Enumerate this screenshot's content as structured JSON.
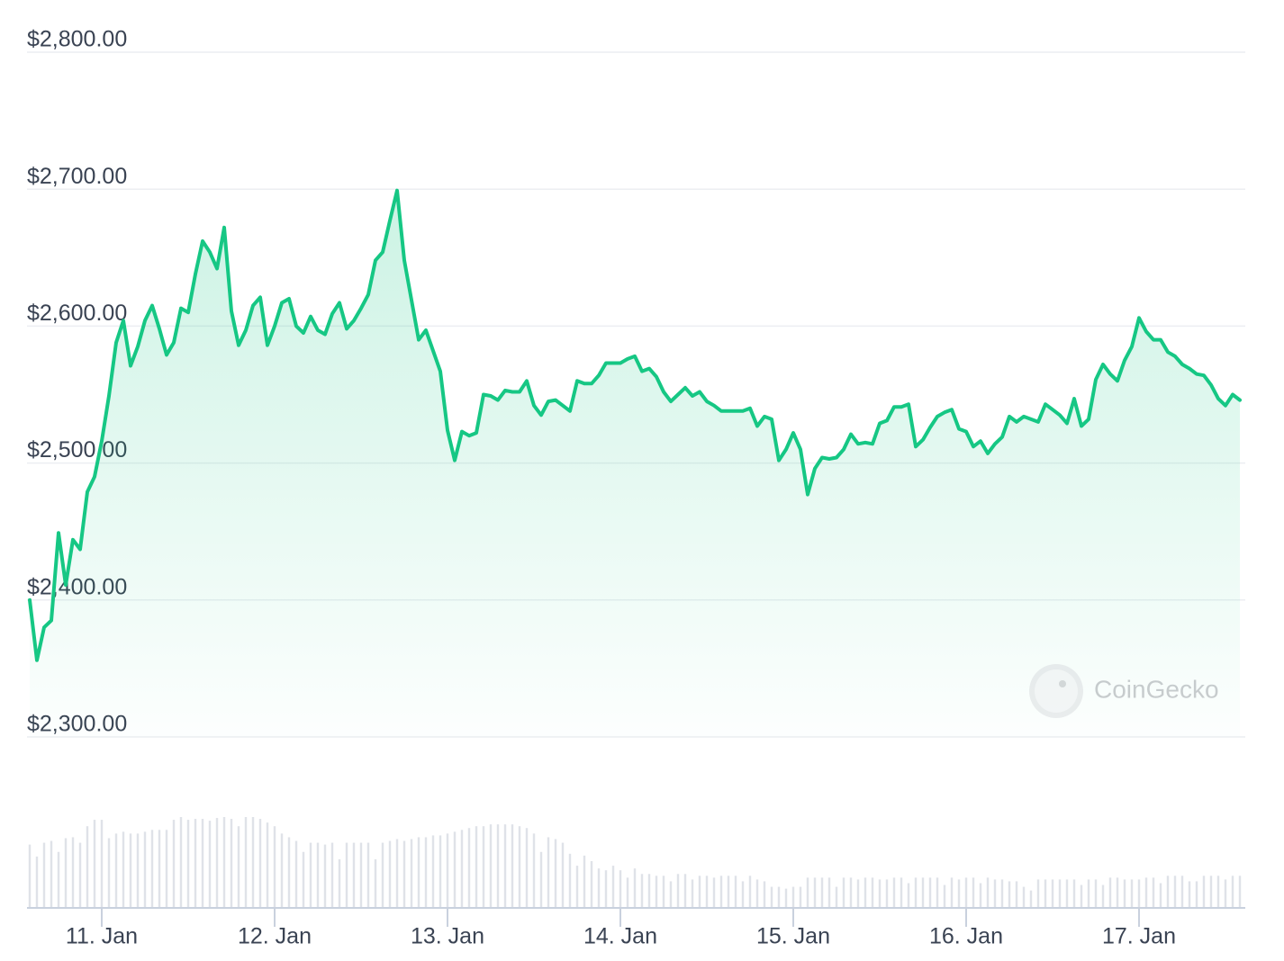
{
  "chart_data": {
    "type": "area",
    "watermark": "CoinGecko",
    "color": "#16c784",
    "volume_color": "#dfe2e8",
    "grid": true,
    "ylim": [
      2300,
      2800
    ],
    "yticks": [
      {
        "value": 2300,
        "label": "$2,300.00"
      },
      {
        "value": 2400,
        "label": "$2,400.00"
      },
      {
        "value": 2500,
        "label": "$2,500.00"
      },
      {
        "value": 2600,
        "label": "$2,600.00"
      },
      {
        "value": 2700,
        "label": "$2,700.00"
      },
      {
        "value": 2800,
        "label": "$2,800.00"
      }
    ],
    "xlim": [
      -10,
      158.75
    ],
    "xticks": [
      {
        "value": 0,
        "label": "11. Jan"
      },
      {
        "value": 24,
        "label": "12. Jan"
      },
      {
        "value": 48,
        "label": "13. Jan"
      },
      {
        "value": 72,
        "label": "14. Jan"
      },
      {
        "value": 96,
        "label": "15. Jan"
      },
      {
        "value": 120,
        "label": "16. Jan"
      },
      {
        "value": 144,
        "label": "17. Jan"
      }
    ],
    "x": [
      -10,
      -9,
      -8,
      -7,
      -6,
      -5,
      -4,
      -3,
      -2,
      -1,
      0,
      1,
      2,
      3,
      4,
      5,
      6,
      7,
      8,
      9,
      10,
      11,
      12,
      13,
      14,
      15,
      16,
      17,
      18,
      19,
      20,
      21,
      22,
      23,
      24,
      25,
      26,
      27,
      28,
      29,
      30,
      31,
      32,
      33,
      34,
      35,
      36,
      37,
      38,
      39,
      40,
      41,
      42,
      43,
      44,
      45,
      46,
      47,
      48,
      49,
      50,
      51,
      52,
      53,
      54,
      55,
      56,
      57,
      58,
      59,
      60,
      61,
      62,
      63,
      64,
      65,
      66,
      67,
      68,
      69,
      70,
      71,
      72,
      73,
      74,
      75,
      76,
      77,
      78,
      79,
      80,
      81,
      82,
      83,
      84,
      85,
      86,
      87,
      88,
      89,
      90,
      91,
      92,
      93,
      94,
      95,
      96,
      97,
      98,
      99,
      100,
      101,
      102,
      103,
      104,
      105,
      106,
      107,
      108,
      109,
      110,
      111,
      112,
      113,
      114,
      115,
      116,
      117,
      118,
      119,
      120,
      121,
      122,
      123,
      124,
      125,
      126,
      127,
      128,
      129,
      130,
      131,
      132,
      133,
      134,
      135,
      136,
      137,
      138,
      139,
      140,
      141,
      142,
      143,
      144,
      145,
      146,
      147,
      148,
      149,
      150,
      151,
      152,
      153,
      154,
      155,
      156,
      157,
      158
    ],
    "values": [
      2400,
      2356,
      2380,
      2385,
      2449,
      2411,
      2444,
      2437,
      2479,
      2490,
      2516,
      2549,
      2588,
      2604,
      2571,
      2585,
      2604,
      2615,
      2598,
      2579,
      2588,
      2613,
      2610,
      2638,
      2662,
      2654,
      2642,
      2672,
      2611,
      2586,
      2597,
      2615,
      2621,
      2586,
      2600,
      2617,
      2620,
      2600,
      2595,
      2607,
      2597,
      2594,
      2609,
      2617,
      2598,
      2604,
      2613,
      2623,
      2648,
      2654,
      2677,
      2699,
      2648,
      2619,
      2590,
      2597,
      2582,
      2567,
      2524,
      2502,
      2523,
      2520,
      2522,
      2550,
      2549,
      2546,
      2553,
      2552,
      2552,
      2560,
      2542,
      2535,
      2545,
      2546,
      2542,
      2538,
      2560,
      2558,
      2558,
      2564,
      2573,
      2573,
      2573,
      2576,
      2578,
      2567,
      2569,
      2563,
      2552,
      2545,
      2550,
      2555,
      2549,
      2552,
      2545,
      2542,
      2538,
      2538,
      2538,
      2538,
      2540,
      2527,
      2534,
      2532,
      2502,
      2510,
      2522,
      2510,
      2477,
      2496,
      2504,
      2503,
      2504,
      2510,
      2521,
      2514,
      2515,
      2514,
      2529,
      2531,
      2541,
      2541,
      2543,
      2512,
      2517,
      2526,
      2534,
      2537,
      2539,
      2525,
      2523,
      2512,
      2516,
      2507,
      2514,
      2519,
      2534,
      2530,
      2534,
      2532,
      2530,
      2543,
      2539,
      2535,
      2529,
      2547,
      2527,
      2532,
      2561,
      2572,
      2565,
      2560,
      2575,
      2585,
      2606,
      2596,
      2590,
      2590,
      2581,
      2578,
      2572,
      2569,
      2565,
      2564,
      2557,
      2547,
      2542,
      2550,
      2546
    ],
    "volumes": [
      68,
      55,
      70,
      72,
      60,
      75,
      76,
      70,
      88,
      95,
      95,
      75,
      80,
      82,
      80,
      80,
      82,
      84,
      84,
      84,
      95,
      98,
      95,
      96,
      96,
      94,
      97,
      98,
      96,
      88,
      98,
      98,
      96,
      92,
      88,
      80,
      76,
      72,
      60,
      70,
      70,
      68,
      70,
      52,
      70,
      70,
      70,
      70,
      52,
      70,
      72,
      74,
      72,
      74,
      76,
      76,
      78,
      78,
      80,
      82,
      84,
      86,
      88,
      88,
      90,
      90,
      90,
      90,
      88,
      86,
      80,
      60,
      76,
      74,
      70,
      58,
      45,
      56,
      50,
      42,
      40,
      45,
      40,
      32,
      42,
      36,
      36,
      34,
      34,
      28,
      36,
      36,
      30,
      34,
      34,
      32,
      34,
      34,
      34,
      28,
      34,
      30,
      28,
      22,
      22,
      20,
      22,
      22,
      32,
      32,
      32,
      32,
      22,
      32,
      32,
      30,
      32,
      32,
      30,
      30,
      32,
      32,
      26,
      32,
      32,
      32,
      32,
      24,
      32,
      30,
      32,
      32,
      26,
      32,
      30,
      30,
      28,
      28,
      22,
      18,
      30,
      30,
      30,
      30,
      30,
      30,
      24,
      30,
      30,
      24,
      32,
      32,
      30,
      30,
      30,
      32,
      32,
      26,
      34,
      34,
      34,
      28,
      28,
      34,
      34,
      34,
      30,
      34,
      34
    ]
  }
}
